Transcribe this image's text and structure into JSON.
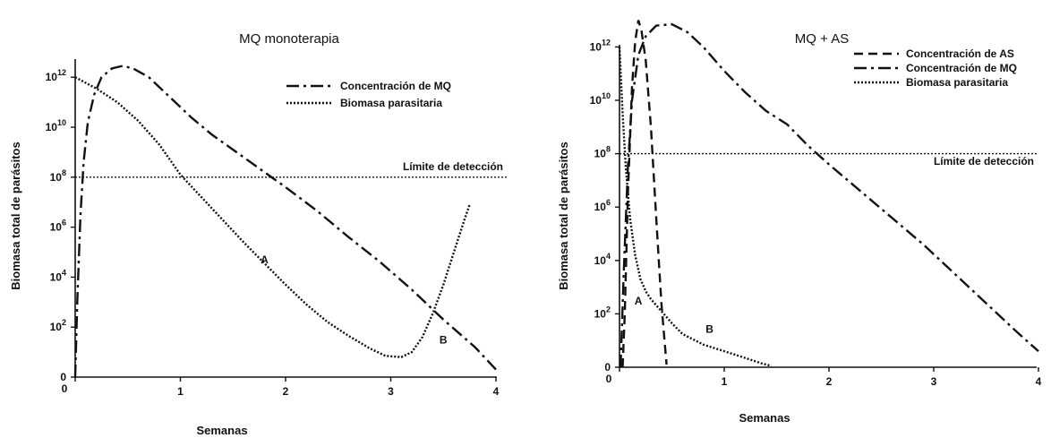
{
  "chart_data": [
    {
      "type": "line",
      "title": "MQ monoterapia",
      "xlabel": "Semanas",
      "ylabel": "Biomasa total de parásitos",
      "x_ticks": [
        "0",
        "1",
        "2",
        "3",
        "4"
      ],
      "y_ticks": [
        {
          "base": "0",
          "exp": ""
        },
        {
          "base": "10",
          "exp": "2"
        },
        {
          "base": "10",
          "exp": "4"
        },
        {
          "base": "10",
          "exp": "6"
        },
        {
          "base": "10",
          "exp": "8"
        },
        {
          "base": "10",
          "exp": "10"
        },
        {
          "base": "10",
          "exp": "12"
        }
      ],
      "xlim": [
        0,
        4.1
      ],
      "y_scale": "log10 (0 at bottom)",
      "ylim": [
        0,
        12.6
      ],
      "legend_position": "top-right",
      "threshold": {
        "label": "Límite de detección",
        "y_log10": 8
      },
      "annotations": [
        {
          "text": "A",
          "x": 1.8,
          "y_log10": 4.55
        },
        {
          "text": "B",
          "x": 3.5,
          "y_log10": 1.35
        }
      ],
      "series": [
        {
          "name": "Concentración de MQ",
          "style": "dashdot",
          "points": [
            [
              0.0,
              0.0
            ],
            [
              0.02,
              3.0
            ],
            [
              0.05,
              6.5
            ],
            [
              0.08,
              8.6
            ],
            [
              0.12,
              10.2
            ],
            [
              0.18,
              11.3
            ],
            [
              0.25,
              12.0
            ],
            [
              0.35,
              12.35
            ],
            [
              0.45,
              12.45
            ],
            [
              0.55,
              12.35
            ],
            [
              0.7,
              12.0
            ],
            [
              0.9,
              11.2
            ],
            [
              1.1,
              10.4
            ],
            [
              1.3,
              9.7
            ],
            [
              1.5,
              9.1
            ],
            [
              1.7,
              8.5
            ],
            [
              2.0,
              7.6
            ],
            [
              2.3,
              6.65
            ],
            [
              2.6,
              5.6
            ],
            [
              2.9,
              4.6
            ],
            [
              3.2,
              3.5
            ],
            [
              3.5,
              2.3
            ],
            [
              3.8,
              1.2
            ],
            [
              4.0,
              0.3
            ]
          ]
        },
        {
          "name": "Biomasa parasitaria",
          "style": "dotted",
          "points": [
            [
              0.0,
              12.0
            ],
            [
              0.2,
              11.55
            ],
            [
              0.4,
              11.0
            ],
            [
              0.6,
              10.25
            ],
            [
              0.8,
              9.3
            ],
            [
              1.0,
              8.1
            ],
            [
              1.2,
              7.2
            ],
            [
              1.4,
              6.3
            ],
            [
              1.6,
              5.4
            ],
            [
              1.8,
              4.55
            ],
            [
              2.0,
              3.7
            ],
            [
              2.2,
              2.9
            ],
            [
              2.4,
              2.2
            ],
            [
              2.6,
              1.65
            ],
            [
              2.8,
              1.15
            ],
            [
              2.95,
              0.85
            ],
            [
              3.1,
              0.8
            ],
            [
              3.2,
              1.0
            ],
            [
              3.3,
              1.6
            ],
            [
              3.4,
              2.55
            ],
            [
              3.5,
              3.7
            ],
            [
              3.6,
              5.0
            ],
            [
              3.7,
              6.3
            ],
            [
              3.75,
              6.9
            ]
          ]
        }
      ]
    },
    {
      "type": "line",
      "title": "MQ + AS",
      "xlabel": "Semanas",
      "ylabel": "Biomasa total de parásitos",
      "x_ticks": [
        "0",
        "1",
        "2",
        "3",
        "4"
      ],
      "y_ticks": [
        {
          "base": "0",
          "exp": ""
        },
        {
          "base": "10",
          "exp": "2"
        },
        {
          "base": "10",
          "exp": "4"
        },
        {
          "base": "10",
          "exp": "6"
        },
        {
          "base": "10",
          "exp": "8"
        },
        {
          "base": "10",
          "exp": "10"
        },
        {
          "base": "10",
          "exp": "12"
        }
      ],
      "xlim": [
        0,
        4.1
      ],
      "y_scale": "log10 (0 at bottom)",
      "ylim": [
        0,
        13.2
      ],
      "legend_position": "top-right",
      "threshold": {
        "label": "Límite de detección",
        "y_log10": 8
      },
      "annotations": [
        {
          "text": "A",
          "x": 0.18,
          "y_log10": 2.35
        },
        {
          "text": "B",
          "x": 0.86,
          "y_log10": 1.3
        }
      ],
      "series": [
        {
          "name": "Concentración de AS",
          "style": "dashed",
          "points": [
            [
              0.03,
              0.0
            ],
            [
              0.05,
              2.0
            ],
            [
              0.08,
              6.5
            ],
            [
              0.12,
              10.5
            ],
            [
              0.15,
              12.2
            ],
            [
              0.18,
              13.0
            ],
            [
              0.21,
              12.6
            ],
            [
              0.25,
              11.5
            ],
            [
              0.3,
              9.0
            ],
            [
              0.35,
              5.6
            ],
            [
              0.4,
              2.4
            ],
            [
              0.43,
              1.0
            ],
            [
              0.45,
              0.1
            ]
          ]
        },
        {
          "name": "Concentración de MQ",
          "style": "dashdot",
          "points": [
            [
              0.01,
              0.0
            ],
            [
              0.04,
              3.5
            ],
            [
              0.08,
              7.5
            ],
            [
              0.12,
              10.0
            ],
            [
              0.18,
              11.7
            ],
            [
              0.25,
              12.4
            ],
            [
              0.35,
              12.8
            ],
            [
              0.5,
              12.85
            ],
            [
              0.65,
              12.55
            ],
            [
              0.8,
              12.0
            ],
            [
              1.0,
              11.1
            ],
            [
              1.2,
              10.3
            ],
            [
              1.4,
              9.6
            ],
            [
              1.6,
              9.1
            ],
            [
              1.8,
              8.3
            ],
            [
              2.0,
              7.6
            ],
            [
              2.3,
              6.6
            ],
            [
              2.6,
              5.6
            ],
            [
              2.9,
              4.6
            ],
            [
              3.2,
              3.5
            ],
            [
              3.5,
              2.4
            ],
            [
              3.8,
              1.3
            ],
            [
              4.0,
              0.6
            ]
          ]
        },
        {
          "name": "Biomasa parasitaria",
          "style": "dotted",
          "points": [
            [
              0.0,
              12.0
            ],
            [
              0.03,
              9.5
            ],
            [
              0.06,
              7.5
            ],
            [
              0.1,
              5.6
            ],
            [
              0.15,
              4.2
            ],
            [
              0.2,
              3.3
            ],
            [
              0.25,
              2.85
            ],
            [
              0.3,
              2.55
            ],
            [
              0.4,
              2.1
            ],
            [
              0.5,
              1.65
            ],
            [
              0.6,
              1.25
            ],
            [
              0.8,
              0.85
            ],
            [
              1.0,
              0.6
            ],
            [
              1.2,
              0.35
            ],
            [
              1.35,
              0.15
            ],
            [
              1.45,
              0.05
            ]
          ]
        }
      ]
    }
  ]
}
